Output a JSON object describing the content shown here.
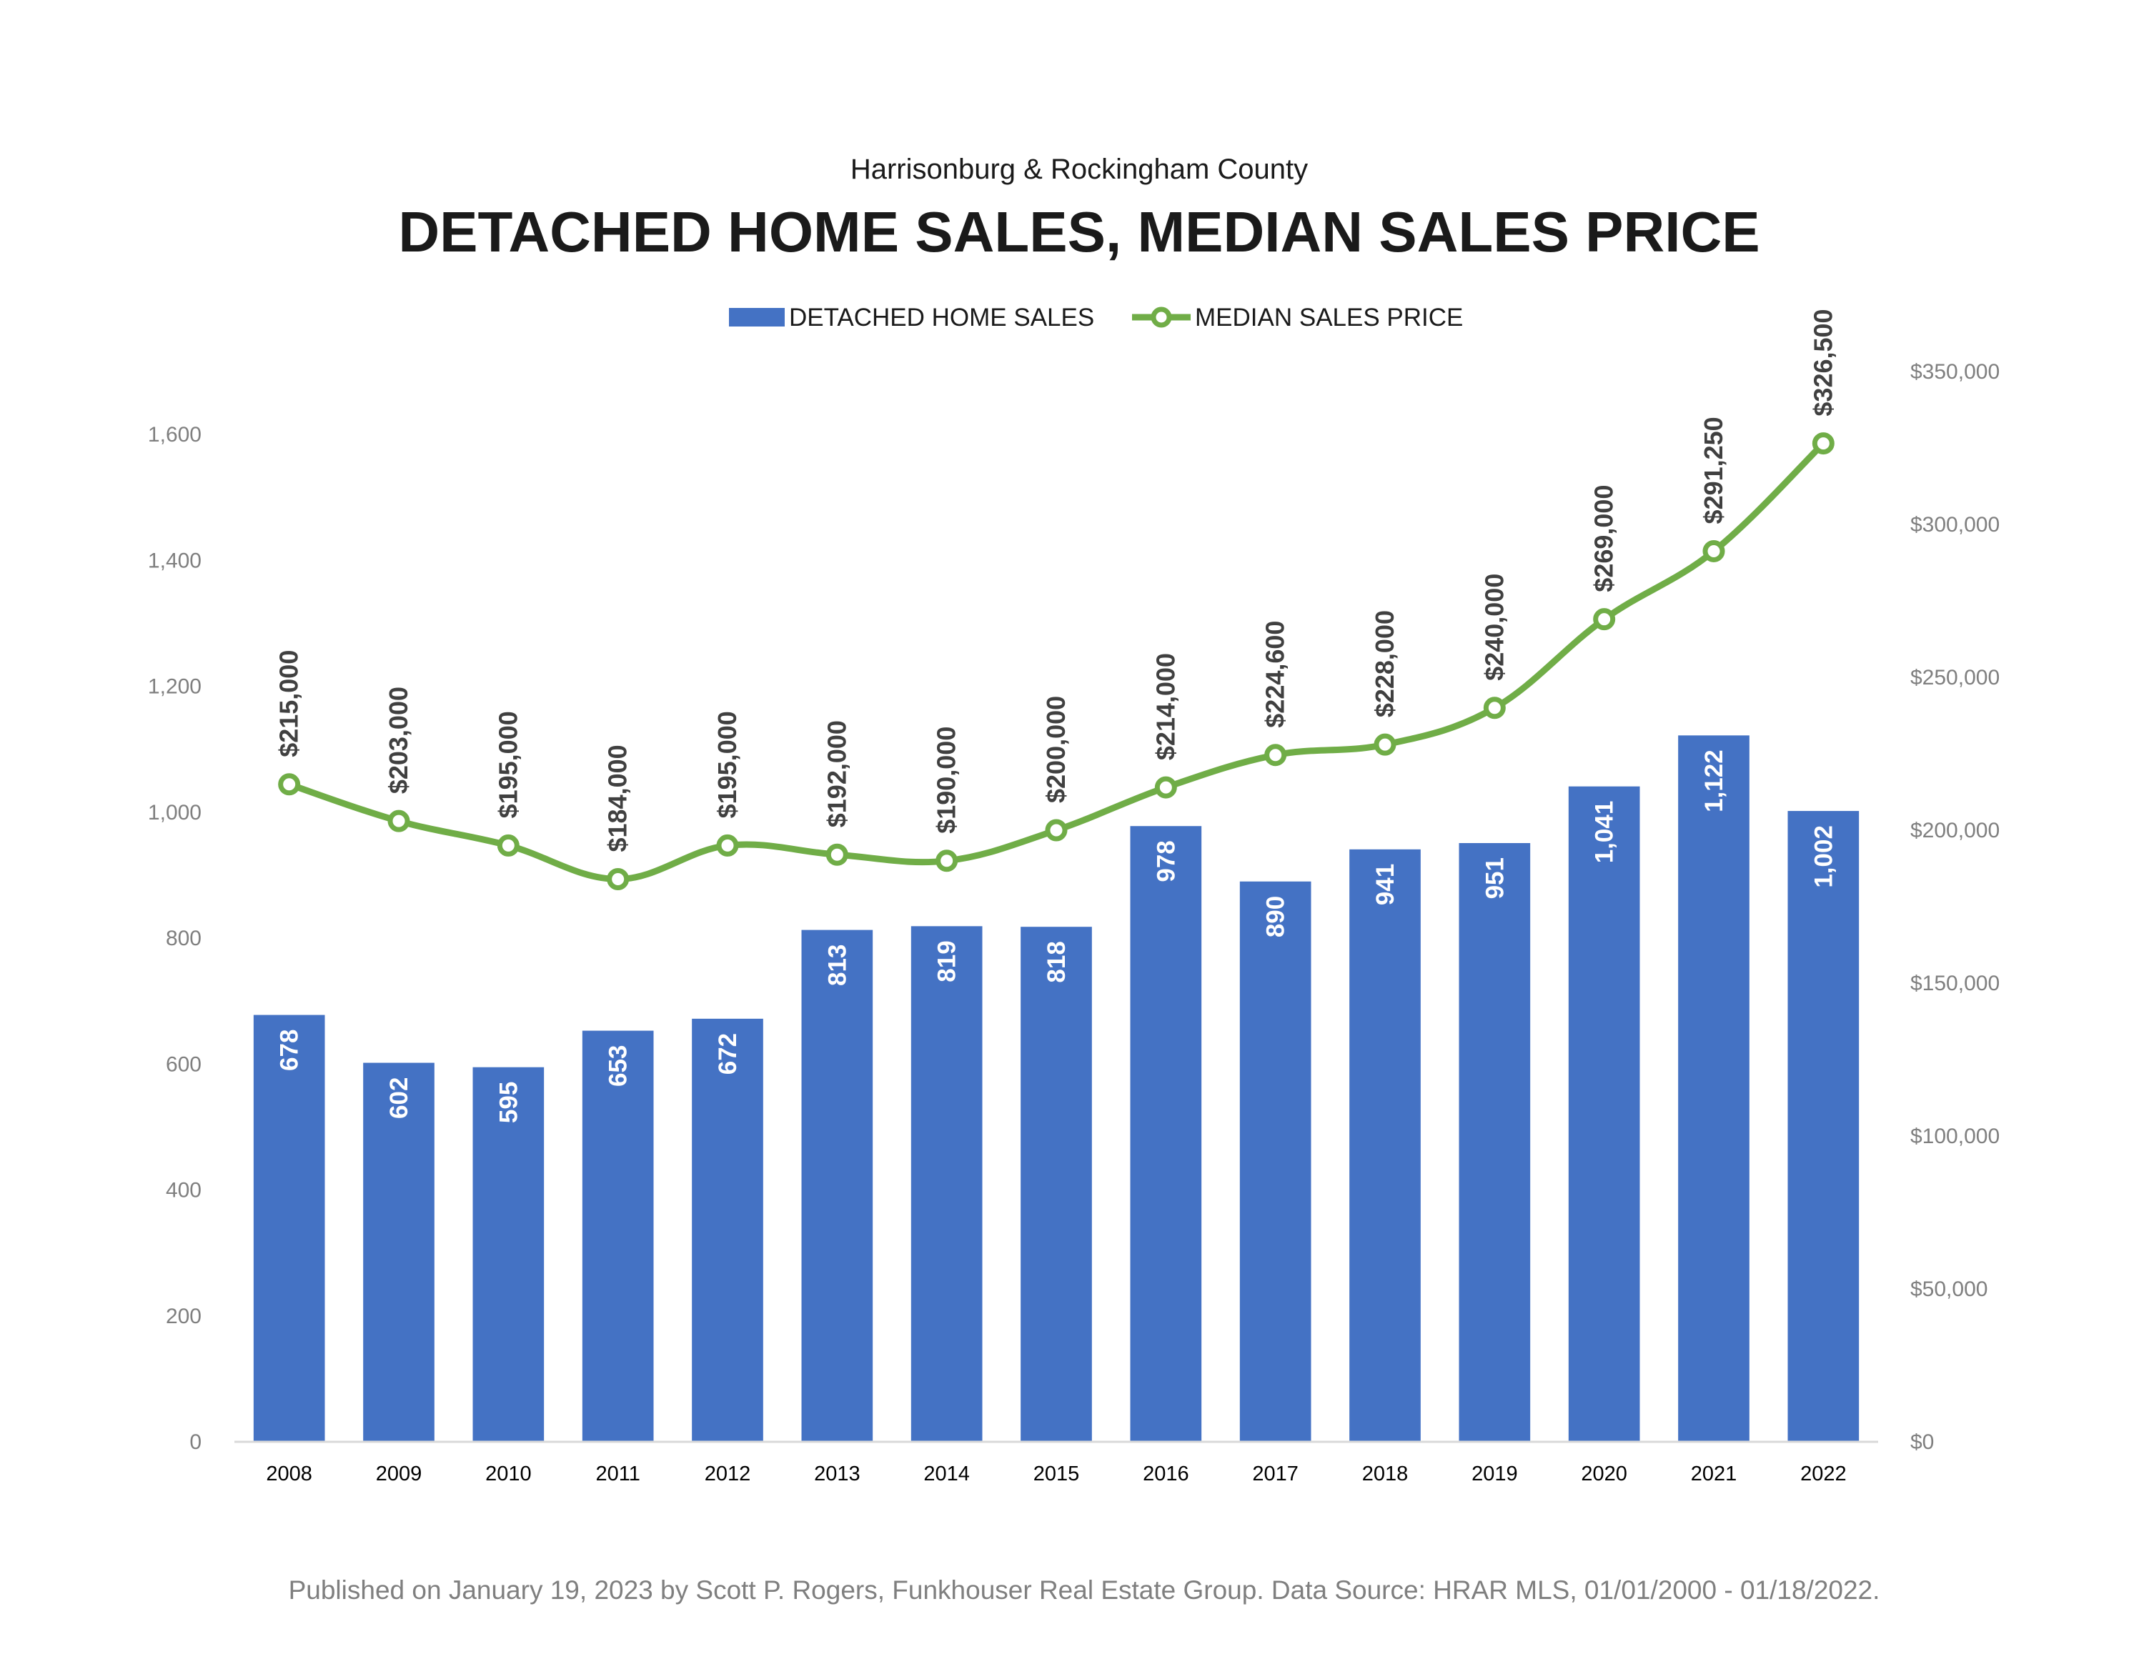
{
  "chart_data": {
    "type": "bar",
    "subtitle": "Harrisonburg & Rockingham County",
    "title": "DETACHED HOME SALES, MEDIAN SALES PRICE",
    "categories": [
      "2008",
      "2009",
      "2010",
      "2011",
      "2012",
      "2013",
      "2014",
      "2015",
      "2016",
      "2017",
      "2018",
      "2019",
      "2020",
      "2021",
      "2022"
    ],
    "series": [
      {
        "name": "DETACHED HOME SALES",
        "type": "bar",
        "axis": "left",
        "color": "#4472c4",
        "values": [
          678,
          602,
          595,
          653,
          672,
          813,
          819,
          818,
          978,
          890,
          941,
          951,
          1041,
          1122,
          1002
        ],
        "labels": [
          "678",
          "602",
          "595",
          "653",
          "672",
          "813",
          "819",
          "818",
          "978",
          "890",
          "941",
          "951",
          "1,041",
          "1,122",
          "1,002"
        ]
      },
      {
        "name": "MEDIAN SALES PRICE",
        "type": "line",
        "axis": "right",
        "color": "#70ad47",
        "smooth": true,
        "values": [
          215000,
          203000,
          195000,
          184000,
          195000,
          192000,
          190000,
          200000,
          214000,
          224600,
          228000,
          240000,
          269000,
          291250,
          326500
        ],
        "labels": [
          "$215,000",
          "$203,000",
          "$195,000",
          "$184,000",
          "$195,000",
          "$192,000",
          "$190,000",
          "$200,000",
          "$214,000",
          "$224,600",
          "$228,000",
          "$240,000",
          "$269,000",
          "$291,250",
          "$326,500"
        ]
      }
    ],
    "y_left": {
      "min": 0,
      "max": 1700,
      "ticks": [
        0,
        200,
        400,
        600,
        800,
        1000,
        1200,
        1400,
        1600
      ],
      "tick_labels": [
        "0",
        "200",
        "400",
        "600",
        "800",
        "1,000",
        "1,200",
        "1,400",
        "1,600"
      ]
    },
    "y_right": {
      "min": 0,
      "max": 350000,
      "ticks": [
        0,
        50000,
        100000,
        150000,
        200000,
        250000,
        300000,
        350000
      ],
      "tick_labels": [
        "$0",
        "$50,000",
        "$100,000",
        "$150,000",
        "$200,000",
        "$250,000",
        "$300,000",
        "$350,000"
      ]
    },
    "grid": false,
    "legend_position": "top-center"
  },
  "footer": "Published on January 19, 2023 by Scott P. Rogers, Funkhouser Real Estate Group. Data Source: HRAR MLS, 01/01/2000 - 01/18/2022."
}
